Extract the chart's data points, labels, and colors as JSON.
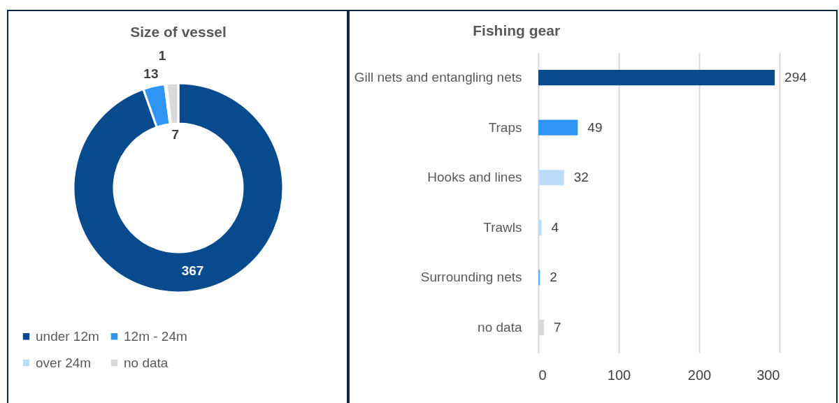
{
  "chart_data": [
    {
      "type": "donut",
      "title": "Size of vessel",
      "categories": [
        "under 12m",
        "12m - 24m",
        "over 24m",
        "no data"
      ],
      "values": [
        367,
        13,
        1,
        7
      ],
      "colors": [
        "#074a8e",
        "#2e95f5",
        "#bbdcfb",
        "#d9d9d9"
      ],
      "data_labels": true,
      "legend": "bottom"
    },
    {
      "type": "bar",
      "orientation": "horizontal",
      "title": "Fishing gear",
      "categories": [
        "Gill nets and entangling nets",
        "Traps",
        "Hooks and lines",
        "Trawls",
        "Surrounding nets",
        "no data"
      ],
      "values": [
        294,
        49,
        32,
        4,
        2,
        7
      ],
      "colors": [
        "#074a8e",
        "#2e95f5",
        "#bbdcfb",
        "#bbdcfb",
        "#5aaaf5",
        "#d9d9d9"
      ],
      "xlim": [
        0,
        300
      ],
      "xticks": [
        0,
        100,
        200,
        300
      ],
      "grid": "x",
      "data_labels": true
    }
  ]
}
